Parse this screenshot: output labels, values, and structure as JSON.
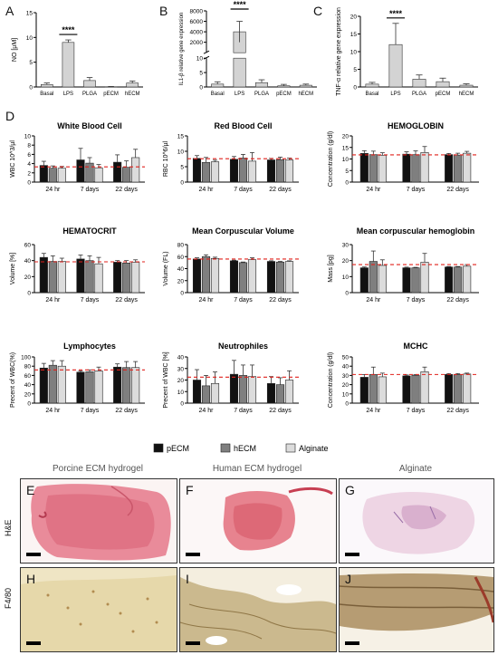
{
  "colors": {
    "pECM": "#111111",
    "hECM": "#7f7f7f",
    "Alginate": "#dcdcdc",
    "top_bar": "#d3d3d3",
    "threshold": "#e0201b"
  },
  "legend": [
    "pECM",
    "hECM",
    "Alginate"
  ],
  "chart_data": [
    {
      "panel": "A",
      "type": "bar",
      "categories": [
        "Basal",
        "LPS",
        "PLGA",
        "pECM",
        "hECM"
      ],
      "values": [
        0.5,
        9.0,
        1.3,
        0.05,
        0.8
      ],
      "errors": [
        0.3,
        0.5,
        0.6,
        0.05,
        0.4
      ],
      "ylabel": "NO [μM]",
      "ylim": [
        0,
        15
      ],
      "yticks": [
        0,
        5,
        10,
        15
      ],
      "significance": "****"
    },
    {
      "panel": "B",
      "type": "bar",
      "categories": [
        "Basal",
        "LPS",
        "PLGA",
        "pECM",
        "hECM"
      ],
      "values": [
        1.0,
        4000,
        1.5,
        0.4,
        0.6
      ],
      "errors": [
        0.8,
        2000,
        1.0,
        0.5,
        0.4
      ],
      "ylabel": "IL1-β relative gene expression",
      "yticks_lower": [
        0,
        5,
        10
      ],
      "yticks_upper": [
        2000,
        4000,
        6000,
        8000
      ],
      "broken_axis": true,
      "significance": "****"
    },
    {
      "panel": "C",
      "type": "bar",
      "categories": [
        "Basal",
        "LPS",
        "PLGA",
        "pECM",
        "hECM"
      ],
      "values": [
        0.8,
        12.0,
        2.2,
        1.5,
        0.5
      ],
      "errors": [
        0.5,
        6.0,
        1.2,
        1.0,
        0.4
      ],
      "ylabel": "TNF-α relative gene expression",
      "ylim": [
        0,
        20
      ],
      "yticks": [
        0,
        5,
        10,
        15,
        20
      ],
      "significance": "****"
    },
    {
      "panel": "D",
      "type": "bar",
      "title": "White Blood Cell",
      "categories": [
        "24 hr",
        "7 days",
        "22 days"
      ],
      "series": [
        {
          "name": "pECM",
          "values": [
            3.6,
            4.8,
            4.3
          ],
          "errors": [
            0.9,
            2.5,
            1.6
          ]
        },
        {
          "name": "hECM",
          "values": [
            3.0,
            4.1,
            3.2
          ],
          "errors": [
            0.5,
            1.2,
            1.4
          ]
        },
        {
          "name": "Alginate",
          "values": [
            3.0,
            3.1,
            5.3
          ],
          "errors": [
            0.4,
            0.7,
            1.8
          ]
        }
      ],
      "ylabel": "WBC 10^3/µl",
      "ylim": [
        0,
        10
      ],
      "yticks": [
        0,
        2,
        4,
        6,
        8,
        10
      ],
      "reference": 3.3
    },
    {
      "panel": "D",
      "type": "bar",
      "title": "Red Blood Cell",
      "categories": [
        "24 hr",
        "7 days",
        "22 days"
      ],
      "series": [
        {
          "name": "pECM",
          "values": [
            7.7,
            7.4,
            7.2
          ],
          "errors": [
            0.9,
            0.9,
            0.5
          ]
        },
        {
          "name": "hECM",
          "values": [
            6.4,
            7.8,
            7.3
          ],
          "errors": [
            1.6,
            1.2,
            0.8
          ]
        },
        {
          "name": "Alginate",
          "values": [
            6.6,
            6.8,
            7.2
          ],
          "errors": [
            0.5,
            2.8,
            0.6
          ]
        }
      ],
      "ylabel": "RBC 10^6/µl",
      "ylim": [
        0,
        15
      ],
      "yticks": [
        0,
        5,
        10,
        15
      ],
      "reference": 7.6
    },
    {
      "panel": "D",
      "type": "bar",
      "title": "HEMOGLOBIN",
      "categories": [
        "24 hr",
        "7 days",
        "22 days"
      ],
      "series": [
        {
          "name": "pECM",
          "values": [
            12.4,
            12.1,
            11.9
          ],
          "errors": [
            1.2,
            1.0,
            0.5
          ]
        },
        {
          "name": "hECM",
          "values": [
            11.9,
            11.9,
            11.7
          ],
          "errors": [
            1.5,
            1.6,
            0.8
          ]
        },
        {
          "name": "Alginate",
          "values": [
            11.6,
            12.8,
            12.5
          ],
          "errors": [
            1.1,
            2.6,
            0.8
          ]
        }
      ],
      "ylabel": "Concentration (g/dl)",
      "ylim": [
        0,
        20
      ],
      "yticks": [
        0,
        5,
        10,
        15,
        20
      ],
      "reference": 11.8
    },
    {
      "panel": "D",
      "type": "bar",
      "title": "HEMATOCRIT",
      "categories": [
        "24 hr",
        "7 days",
        "22 days"
      ],
      "series": [
        {
          "name": "pECM",
          "values": [
            44,
            42,
            38
          ],
          "errors": [
            5,
            5,
            2
          ]
        },
        {
          "name": "hECM",
          "values": [
            39,
            40,
            37
          ],
          "errors": [
            7,
            6,
            3
          ]
        },
        {
          "name": "Alginate",
          "values": [
            39,
            36,
            38
          ],
          "errors": [
            4,
            8,
            3
          ]
        }
      ],
      "ylabel": "Volume [%]",
      "ylim": [
        0,
        60
      ],
      "yticks": [
        0,
        20,
        40,
        60
      ],
      "reference": 38.5
    },
    {
      "panel": "D",
      "type": "bar",
      "title": "Mean Corpuscular Volume",
      "categories": [
        "24 hr",
        "7 days",
        "22 days"
      ],
      "series": [
        {
          "name": "pECM",
          "values": [
            56,
            53,
            52
          ],
          "errors": [
            2,
            1,
            1
          ]
        },
        {
          "name": "hECM",
          "values": [
            60,
            50,
            51
          ],
          "errors": [
            3,
            1,
            1
          ]
        },
        {
          "name": "Alginate",
          "values": [
            57,
            55,
            52
          ],
          "errors": [
            2,
            3,
            1
          ]
        }
      ],
      "ylabel": "Volume (FL)",
      "ylim": [
        0,
        80
      ],
      "yticks": [
        0,
        20,
        40,
        60,
        80
      ],
      "reference": 56
    },
    {
      "panel": "D",
      "type": "bar",
      "title": "Mean corpuscular hemoglobin",
      "categories": [
        "24 hr",
        "7 days",
        "22 days"
      ],
      "series": [
        {
          "name": "pECM",
          "values": [
            15.5,
            15.5,
            16
          ],
          "errors": [
            0.5,
            0.4,
            0.3
          ]
        },
        {
          "name": "hECM",
          "values": [
            19.5,
            15.5,
            16
          ],
          "errors": [
            6.5,
            0.3,
            0.3
          ]
        },
        {
          "name": "Alginate",
          "values": [
            17,
            19,
            16.5
          ],
          "errors": [
            3.5,
            5.5,
            1
          ]
        }
      ],
      "ylabel": "Mass [pg]",
      "ylim": [
        0,
        30
      ],
      "yticks": [
        0,
        10,
        20,
        30
      ],
      "reference": 17.5
    },
    {
      "panel": "D",
      "type": "bar",
      "title": "Lymphocytes",
      "categories": [
        "24 hr",
        "7 days",
        "22 days"
      ],
      "series": [
        {
          "name": "pECM",
          "values": [
            76,
            67,
            78
          ],
          "errors": [
            10,
            3,
            7
          ]
        },
        {
          "name": "hECM",
          "values": [
            82,
            68,
            77
          ],
          "errors": [
            10,
            4,
            13
          ]
        },
        {
          "name": "Alginate",
          "values": [
            80,
            70,
            77
          ],
          "errors": [
            12,
            8,
            13
          ]
        }
      ],
      "ylabel": "Precent of WBC(%)",
      "ylim": [
        0,
        100
      ],
      "yticks": [
        0,
        20,
        40,
        60,
        80,
        100
      ],
      "reference": 72
    },
    {
      "panel": "D",
      "type": "bar",
      "title": "Neutrophiles",
      "categories": [
        "24 hr",
        "7 days",
        "22 days"
      ],
      "series": [
        {
          "name": "pECM",
          "values": [
            20,
            25,
            17
          ],
          "errors": [
            9,
            12,
            6
          ]
        },
        {
          "name": "hECM",
          "values": [
            15,
            24,
            16
          ],
          "errors": [
            9,
            9,
            6
          ]
        },
        {
          "name": "Alginate",
          "values": [
            17,
            23,
            20
          ],
          "errors": [
            10,
            10,
            8
          ]
        }
      ],
      "ylabel": "Precent of WBC [%]",
      "ylim": [
        0,
        40
      ],
      "yticks": [
        0,
        10,
        20,
        30,
        40
      ],
      "reference": 22.5
    },
    {
      "panel": "D",
      "type": "bar",
      "title": "MCHC",
      "categories": [
        "24 hr",
        "7 days",
        "22 days"
      ],
      "series": [
        {
          "name": "pECM",
          "values": [
            28,
            29.5,
            31
          ],
          "errors": [
            3,
            1,
            1
          ]
        },
        {
          "name": "hECM",
          "values": [
            31,
            30,
            31
          ],
          "errors": [
            8,
            1,
            1
          ]
        },
        {
          "name": "Alginate",
          "values": [
            28.5,
            34,
            31.5
          ],
          "errors": [
            4,
            5,
            1
          ]
        }
      ],
      "ylabel": "Concentration (g/dl)",
      "ylim": [
        0,
        50
      ],
      "yticks": [
        0,
        10,
        20,
        30,
        40,
        50
      ],
      "reference": 31
    }
  ],
  "histology": {
    "columns": [
      "Porcine ECM hydrogel",
      "Human ECM hydrogel",
      "Alginate"
    ],
    "rows": [
      "H&E",
      "F4/80"
    ],
    "tiles": [
      {
        "letter": "E",
        "stain": "he"
      },
      {
        "letter": "F",
        "stain": "he"
      },
      {
        "letter": "G",
        "stain": "he"
      },
      {
        "letter": "H",
        "stain": "f480"
      },
      {
        "letter": "I",
        "stain": "f480"
      },
      {
        "letter": "J",
        "stain": "f480"
      }
    ]
  },
  "panel_letters": [
    "A",
    "B",
    "C",
    "D"
  ]
}
